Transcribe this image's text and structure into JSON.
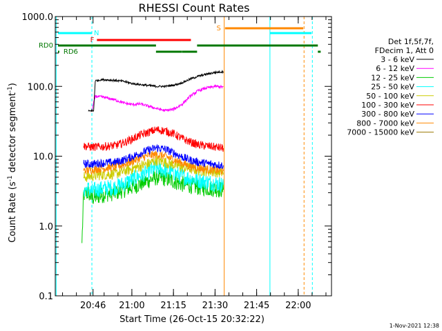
{
  "chart_data": {
    "type": "line",
    "title": "RHESSI Count Rates",
    "xlabel": "Start Time (26-Oct-15 20:32:22)",
    "ylabel_parts": [
      "Count Rate (s",
      "-1",
      " detector segment",
      "-1",
      ")"
    ],
    "yscale": "log",
    "ylim": [
      0.1,
      1000
    ],
    "y_tick_labels": [
      "0.1",
      "1.0",
      "10.0",
      "100.0",
      "1000.0"
    ],
    "x_ticks": [
      {
        "t": 20.7667,
        "label": "20:46"
      },
      {
        "t": 21.0,
        "label": "21:00"
      },
      {
        "t": 21.25,
        "label": "21:15"
      },
      {
        "t": 21.5,
        "label": "21:30"
      },
      {
        "t": 21.75,
        "label": "21:45"
      },
      {
        "t": 22.0,
        "label": "22:00"
      }
    ],
    "xlim_hours": [
      20.5395,
      22.2
    ],
    "legend": {
      "header": [
        "Det 1f,5f,7f,",
        "FDecim 1, Att 0"
      ],
      "placement": "right"
    },
    "series": [
      {
        "name": "3 - 6 keV",
        "color": "#000000",
        "values": [
          [
            20.738,
            44
          ],
          [
            20.76,
            45
          ],
          [
            20.77,
            44
          ],
          [
            20.78,
            120
          ],
          [
            20.82,
            125
          ],
          [
            20.9,
            122
          ],
          [
            20.95,
            118
          ],
          [
            21.0,
            110
          ],
          [
            21.05,
            106
          ],
          [
            21.1,
            103
          ],
          [
            21.15,
            100
          ],
          [
            21.2,
            100
          ],
          [
            21.25,
            104
          ],
          [
            21.3,
            112
          ],
          [
            21.35,
            127
          ],
          [
            21.4,
            140
          ],
          [
            21.45,
            150
          ],
          [
            21.5,
            158
          ],
          [
            21.55,
            163
          ]
        ]
      },
      {
        "name": "6 - 12 keV",
        "color": "#ff00ff",
        "values": [
          [
            20.76,
            45
          ],
          [
            20.78,
            72
          ],
          [
            20.83,
            70
          ],
          [
            20.9,
            64
          ],
          [
            20.95,
            58
          ],
          [
            21.0,
            55
          ],
          [
            21.05,
            56
          ],
          [
            21.1,
            52
          ],
          [
            21.15,
            48
          ],
          [
            21.2,
            45
          ],
          [
            21.25,
            47
          ],
          [
            21.3,
            55
          ],
          [
            21.35,
            72
          ],
          [
            21.4,
            87
          ],
          [
            21.45,
            95
          ],
          [
            21.5,
            100
          ],
          [
            21.55,
            98
          ]
        ]
      },
      {
        "name": "12 - 25 keV",
        "color": "#00cc00",
        "values": [
          [
            20.7,
            0.57
          ],
          [
            20.71,
            2.8
          ],
          [
            20.74,
            3.0
          ],
          [
            20.76,
            2.5
          ],
          [
            20.78,
            2.6
          ],
          [
            20.85,
            2.9
          ],
          [
            20.9,
            3.0
          ],
          [
            20.95,
            3.3
          ],
          [
            21.0,
            3.6
          ],
          [
            21.05,
            4.0
          ],
          [
            21.1,
            4.5
          ],
          [
            21.15,
            5.0
          ],
          [
            21.2,
            4.8
          ],
          [
            21.25,
            4.4
          ],
          [
            21.3,
            4.0
          ],
          [
            21.35,
            3.8
          ],
          [
            21.4,
            3.6
          ],
          [
            21.45,
            3.5
          ],
          [
            21.5,
            3.4
          ],
          [
            21.55,
            3.3
          ]
        ]
      },
      {
        "name": "25 - 50 keV",
        "color": "#00ffff",
        "values": [
          [
            20.71,
            3.3
          ],
          [
            20.74,
            3.4
          ],
          [
            20.76,
            3.1
          ],
          [
            20.78,
            3.3
          ],
          [
            20.85,
            3.5
          ],
          [
            20.9,
            3.6
          ],
          [
            20.95,
            4.0
          ],
          [
            21.0,
            4.6
          ],
          [
            21.05,
            5.3
          ],
          [
            21.1,
            6.0
          ],
          [
            21.15,
            6.8
          ],
          [
            21.2,
            6.3
          ],
          [
            21.25,
            5.8
          ],
          [
            21.3,
            5.2
          ],
          [
            21.35,
            4.8
          ],
          [
            21.4,
            4.5
          ],
          [
            21.45,
            4.3
          ],
          [
            21.5,
            4.1
          ],
          [
            21.55,
            3.9
          ]
        ]
      },
      {
        "name": "50 - 100 keV",
        "color": "#cccc00",
        "values": [
          [
            20.71,
            5.0
          ],
          [
            20.76,
            5.2
          ],
          [
            20.8,
            5.4
          ],
          [
            20.9,
            5.6
          ],
          [
            21.0,
            6.6
          ],
          [
            21.1,
            7.8
          ],
          [
            21.15,
            8.8
          ],
          [
            21.2,
            8.2
          ],
          [
            21.3,
            7.0
          ],
          [
            21.4,
            6.3
          ],
          [
            21.5,
            6.0
          ],
          [
            21.55,
            5.8
          ]
        ]
      },
      {
        "name": "100 - 300 keV",
        "color": "#ff0000",
        "values": [
          [
            20.71,
            14
          ],
          [
            20.76,
            13.5
          ],
          [
            20.8,
            13.6
          ],
          [
            20.9,
            14.2
          ],
          [
            20.95,
            15.5
          ],
          [
            21.0,
            17.5
          ],
          [
            21.05,
            20
          ],
          [
            21.1,
            22
          ],
          [
            21.15,
            24
          ],
          [
            21.2,
            23
          ],
          [
            21.25,
            21
          ],
          [
            21.3,
            18
          ],
          [
            21.35,
            16
          ],
          [
            21.4,
            14.5
          ],
          [
            21.45,
            14
          ],
          [
            21.5,
            13.5
          ],
          [
            21.55,
            13
          ]
        ]
      },
      {
        "name": "300 - 800 keV",
        "color": "#0000ff",
        "values": [
          [
            20.71,
            7.8
          ],
          [
            20.76,
            7.7
          ],
          [
            20.8,
            7.9
          ],
          [
            20.9,
            8.2
          ],
          [
            20.95,
            8.8
          ],
          [
            21.0,
            9.8
          ],
          [
            21.05,
            11.0
          ],
          [
            21.1,
            12.2
          ],
          [
            21.15,
            13.2
          ],
          [
            21.2,
            12.6
          ],
          [
            21.25,
            11.2
          ],
          [
            21.3,
            9.8
          ],
          [
            21.35,
            8.8
          ],
          [
            21.4,
            8.2
          ],
          [
            21.45,
            7.9
          ],
          [
            21.5,
            7.6
          ],
          [
            21.55,
            7.4
          ]
        ]
      },
      {
        "name": "800 - 7000 keV",
        "color": "#ff8800",
        "values": [
          [
            20.71,
            6.2
          ],
          [
            20.76,
            6.4
          ],
          [
            20.8,
            6.6
          ],
          [
            20.9,
            7.0
          ],
          [
            20.95,
            7.6
          ],
          [
            21.0,
            8.4
          ],
          [
            21.05,
            9.4
          ],
          [
            21.1,
            10.2
          ],
          [
            21.15,
            10.6
          ],
          [
            21.2,
            10.0
          ],
          [
            21.25,
            9.0
          ],
          [
            21.3,
            8.0
          ],
          [
            21.35,
            7.2
          ],
          [
            21.4,
            6.8
          ],
          [
            21.45,
            6.5
          ],
          [
            21.5,
            6.3
          ],
          [
            21.55,
            6.1
          ]
        ]
      },
      {
        "name": "7000 - 15000 keV",
        "color": "#997700",
        "values": []
      }
    ],
    "flags": [
      {
        "label": "N",
        "color": "#00ffff",
        "segments": [
          [
            20.556,
            20.7597
          ],
          [
            21.83,
            22.08
          ]
        ]
      },
      {
        "label": "F",
        "color": "#ff0000",
        "segments": [
          [
            20.79,
            21.355
          ]
        ]
      },
      {
        "label": "S",
        "color": "#ff8800",
        "segments": [
          [
            21.56,
            22.03
          ]
        ]
      },
      {
        "label": "RD0",
        "color": "#007700",
        "segments": [
          [
            20.556,
            21.145
          ],
          [
            21.392,
            22.118
          ]
        ]
      },
      {
        "label": "RD6",
        "color": "#007700",
        "segments": [
          [
            20.556,
            20.564
          ],
          [
            21.145,
            21.299
          ],
          [
            21.3,
            21.392
          ],
          [
            22.118,
            22.135
          ]
        ]
      }
    ],
    "vlines": [
      {
        "t": 20.545,
        "color": "#00ffff",
        "style": "solid"
      },
      {
        "t": 20.7597,
        "color": "#00ffff",
        "style": "dashed"
      },
      {
        "t": 21.555,
        "color": "#ff8800",
        "style": "solid"
      },
      {
        "t": 21.83,
        "color": "#00ffff",
        "style": "solid"
      },
      {
        "t": 22.035,
        "color": "#ff8800",
        "style": "dashed"
      },
      {
        "t": 22.085,
        "color": "#00ffff",
        "style": "dashed"
      }
    ]
  },
  "footer_timestamp": "1-Nov-2021 12:38"
}
